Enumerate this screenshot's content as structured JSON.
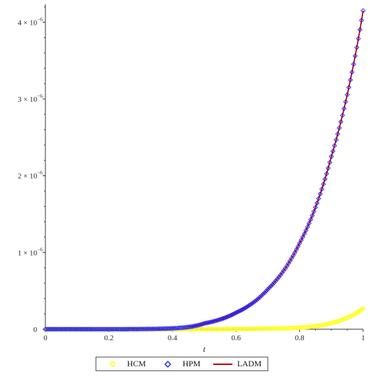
{
  "chart_data": {
    "type": "line",
    "title": "",
    "xlabel": "t",
    "ylabel": "",
    "xlim": [
      0,
      1
    ],
    "ylim": [
      0,
      4.2e-06
    ],
    "x_ticks": [
      "0",
      "0.2",
      "0.4",
      "0.6",
      "0.8",
      "1"
    ],
    "y_ticks": [
      {
        "value": 0,
        "mantissa": "0",
        "exp": ""
      },
      {
        "value": 1e-06,
        "mantissa": "1 × 10",
        "exp": "−6"
      },
      {
        "value": 2e-06,
        "mantissa": "2 × 10",
        "exp": "−6"
      },
      {
        "value": 3e-06,
        "mantissa": "3 × 10",
        "exp": "−6"
      },
      {
        "value": 4e-06,
        "mantissa": "4 × 10",
        "exp": "−6"
      }
    ],
    "grid": false,
    "legend_position": "bottom",
    "series": [
      {
        "name": "HCM",
        "marker": "circle",
        "color": "#ffff33",
        "x": [
          0,
          0.5,
          0.6,
          0.7,
          0.75,
          0.8,
          0.85,
          0.9,
          0.95,
          1.0
        ],
        "y": [
          0,
          0,
          3e-09,
          8e-09,
          1.2e-08,
          2e-08,
          4e-08,
          8e-08,
          1.5e-07,
          2.7e-07
        ]
      },
      {
        "name": "HPM",
        "marker": "diamond",
        "color": "#1a1aff",
        "x": [
          0,
          0.1,
          0.2,
          0.3,
          0.4,
          0.5,
          0.6,
          0.7,
          0.8,
          0.9,
          1.0
        ],
        "y": [
          0,
          0,
          1e-10,
          2e-09,
          1.1e-08,
          7.5e-08,
          2.15e-07,
          5.2e-07,
          1.12e-06,
          2.25e-06,
          4.15e-06
        ]
      },
      {
        "name": "LADM",
        "marker": "line",
        "color": "#b80000",
        "x": [
          0,
          0.1,
          0.2,
          0.3,
          0.4,
          0.5,
          0.6,
          0.7,
          0.8,
          0.9,
          1.0
        ],
        "y": [
          0,
          0,
          1e-10,
          2e-09,
          1.1e-08,
          7.5e-08,
          2.15e-07,
          5.2e-07,
          1.12e-06,
          2.25e-06,
          4.15e-06
        ]
      }
    ]
  }
}
